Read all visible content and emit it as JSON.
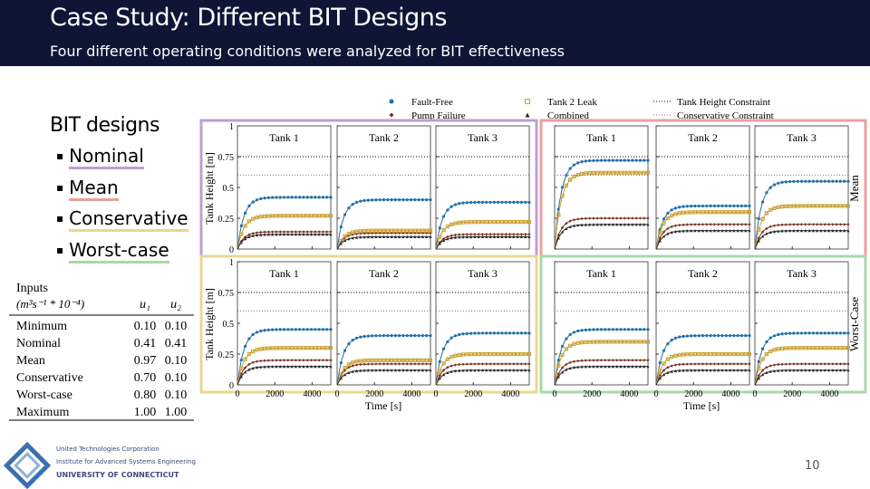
{
  "header": {
    "title": "Case Study: Different BIT Designs",
    "subtitle": "Four different operating conditions were analyzed for BIT effectiveness"
  },
  "bullets": {
    "heading": "BIT designs",
    "items": [
      {
        "text": "Nominal",
        "color": "#b9a0d4"
      },
      {
        "text": "Mean",
        "color": "#e8a0a0"
      },
      {
        "text": "Conservative",
        "color": "#e8d890"
      },
      {
        "text": "Worst-case",
        "color": "#a8d8a8"
      }
    ]
  },
  "table": {
    "title": "Inputs",
    "units": "(m³s⁻¹ * 10⁻⁴)",
    "columns": [
      "u₁",
      "u₂"
    ],
    "rows": [
      [
        "Minimum",
        "0.10",
        "0.10"
      ],
      [
        "Nominal",
        "0.41",
        "0.41"
      ],
      [
        "Mean",
        "0.97",
        "0.10"
      ],
      [
        "Conservative",
        "0.70",
        "0.10"
      ],
      [
        "Worst-case",
        "0.80",
        "0.10"
      ],
      [
        "Maximum",
        "1.00",
        "1.00"
      ]
    ]
  },
  "figure": {
    "series": [
      {
        "name": "Fault-Free",
        "color": "#1f6fa8",
        "marker": "circle"
      },
      {
        "name": "Pump Failure",
        "color": "#7a2a1a",
        "marker": "diamond"
      },
      {
        "name": "Tank 2 Leak",
        "color": "#c8a030",
        "marker": "square"
      },
      {
        "name": "Combined",
        "color": "#2a2a2a",
        "marker": "triangle"
      },
      {
        "name": "Tank Height Constraint",
        "color": "#000000",
        "marker": "line"
      },
      {
        "name": "Conservative Constraint",
        "color": "#9a5aa0",
        "marker": "line"
      }
    ],
    "ylabel": "Tank Height [m]",
    "xlabel": "Time [s]",
    "ylim": [
      0,
      1
    ],
    "yticks": [
      0,
      0.25,
      0.5,
      0.75,
      1
    ],
    "xlim": [
      0,
      5000
    ],
    "xticks": [
      0,
      2000,
      4000
    ],
    "groups": [
      {
        "name": "Nominal",
        "color": "#b9a0d4",
        "panels": [
          {
            "title": "Tank 1",
            "values": [
              0.42,
              0.14,
              0.27,
              0.12,
              0.75,
              0.6
            ]
          },
          {
            "title": "Tank 2",
            "values": [
              0.4,
              0.13,
              0.15,
              0.1,
              0.75,
              0.6
            ]
          },
          {
            "title": "Tank 3",
            "values": [
              0.38,
              0.12,
              0.22,
              0.1,
              0.75,
              0.6
            ]
          }
        ]
      },
      {
        "name": "Mean",
        "color": "#e8a0a0",
        "panels": [
          {
            "title": "Tank 1",
            "values": [
              0.72,
              0.25,
              0.62,
              0.2,
              0.75,
              0.6
            ]
          },
          {
            "title": "Tank 2",
            "values": [
              0.35,
              0.2,
              0.3,
              0.15,
              0.75,
              0.6
            ]
          },
          {
            "title": "Tank 3",
            "values": [
              0.55,
              0.2,
              0.35,
              0.15,
              0.75,
              0.6
            ]
          }
        ]
      },
      {
        "name": "Conservative",
        "color": "#e8d890",
        "panels": [
          {
            "title": "Tank 1",
            "values": [
              0.45,
              0.2,
              0.3,
              0.15,
              0.75,
              0.6
            ]
          },
          {
            "title": "Tank 2",
            "values": [
              0.4,
              0.17,
              0.2,
              0.12,
              0.75,
              0.6
            ]
          },
          {
            "title": "Tank 3",
            "values": [
              0.42,
              0.17,
              0.25,
              0.12,
              0.75,
              0.6
            ]
          }
        ]
      },
      {
        "name": "Worst-Case",
        "color": "#a8d8a8",
        "panels": [
          {
            "title": "Tank 1",
            "values": [
              0.45,
              0.2,
              0.35,
              0.15,
              0.75,
              0.6
            ]
          },
          {
            "title": "Tank 2",
            "values": [
              0.4,
              0.17,
              0.25,
              0.12,
              0.75,
              0.6
            ]
          },
          {
            "title": "Tank 3",
            "values": [
              0.42,
              0.17,
              0.3,
              0.12,
              0.75,
              0.6
            ]
          }
        ]
      }
    ]
  },
  "logo": {
    "lines": [
      "United Technologies Corporation",
      "Institute for Advanced Systems Engineering",
      "UNIVERSITY OF CONNECTICUT"
    ]
  },
  "page_number": "10"
}
